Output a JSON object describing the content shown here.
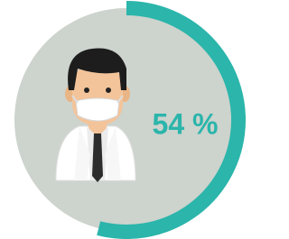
{
  "chart_data": {
    "type": "donut",
    "values": [
      54
    ],
    "value_labels": [
      "54 %"
    ],
    "color": "#2bb5ab",
    "track_color": "#cdd3cd"
  }
}
